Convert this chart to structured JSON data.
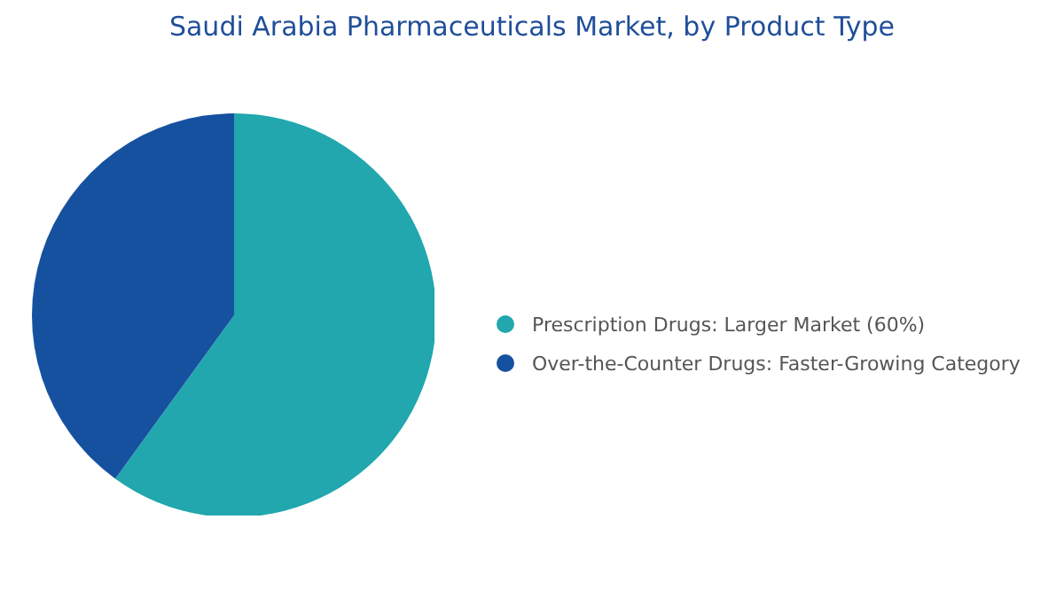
{
  "chart_data": {
    "type": "pie",
    "title": "Saudi Arabia Pharmaceuticals Market, by Product Type",
    "categories": [
      "Prescription Drugs: Larger Market (60%)",
      "Over-the-Counter Drugs: Faster-Growing Category"
    ],
    "values": [
      60,
      40
    ],
    "colors": [
      "#21a7ad",
      "#1651a0"
    ],
    "legend": "right"
  }
}
